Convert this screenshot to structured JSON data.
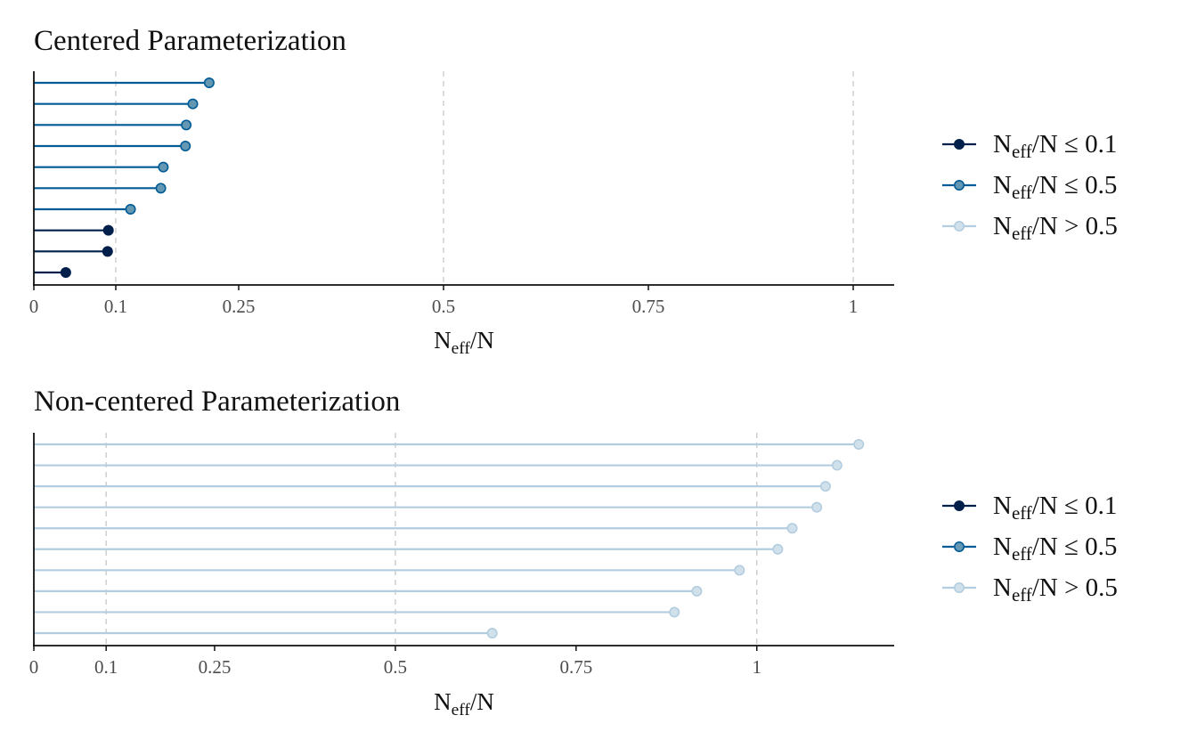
{
  "chart_data": [
    {
      "type": "lollipop",
      "title": "Centered Parameterization",
      "xlabel": {
        "main": "N",
        "sub": "eff",
        "tail": "/N"
      },
      "xlim": [
        0,
        1.05
      ],
      "xticks": [
        0,
        0.1,
        0.25,
        0.5,
        0.75,
        1
      ],
      "xtick_labels": [
        "0",
        "0.1",
        "0.25",
        "0.5",
        "0.75",
        "1"
      ],
      "reference_lines": [
        0.1,
        0.5,
        1
      ],
      "values": [
        0.214,
        0.194,
        0.186,
        0.185,
        0.158,
        0.155,
        0.118,
        0.091,
        0.09,
        0.039
      ],
      "legend": {
        "position": "right",
        "entries": [
          {
            "main": "N",
            "sub": "eff",
            "tail": "/N ≤ 0.1",
            "color": "#011f4b"
          },
          {
            "main": "N",
            "sub": "eff",
            "tail": "/N ≤ 0.5",
            "color": "#005b96"
          },
          {
            "main": "N",
            "sub": "eff",
            "tail": "/N > 0.5",
            "color": "#b3cde0"
          }
        ]
      }
    },
    {
      "type": "lollipop",
      "title": "Non-centered Parameterization",
      "xlabel": {
        "main": "N",
        "sub": "eff",
        "tail": "/N"
      },
      "xlim": [
        0,
        1.19
      ],
      "xticks": [
        0,
        0.1,
        0.25,
        0.5,
        0.75,
        1
      ],
      "xtick_labels": [
        "0",
        "0.1",
        "0.25",
        "0.5",
        "0.75",
        "1"
      ],
      "reference_lines": [
        0.1,
        0.5,
        1
      ],
      "values": [
        1.141,
        1.111,
        1.095,
        1.083,
        1.049,
        1.029,
        0.976,
        0.917,
        0.886,
        0.634
      ],
      "legend": {
        "position": "right",
        "entries": [
          {
            "main": "N",
            "sub": "eff",
            "tail": "/N ≤ 0.1",
            "color": "#011f4b"
          },
          {
            "main": "N",
            "sub": "eff",
            "tail": "/N ≤ 0.5",
            "color": "#005b96"
          },
          {
            "main": "N",
            "sub": "eff",
            "tail": "/N > 0.5",
            "color": "#b3cde0"
          }
        ]
      }
    }
  ],
  "colors": {
    "low": "#011f4b",
    "low_point": "#011f4b",
    "mid": "#005b96",
    "mid_point": "#6497b1",
    "high": "#b3cde0",
    "high_point": "#d1e1ec",
    "grid": "#c8c8c8",
    "axis": "#111111"
  }
}
